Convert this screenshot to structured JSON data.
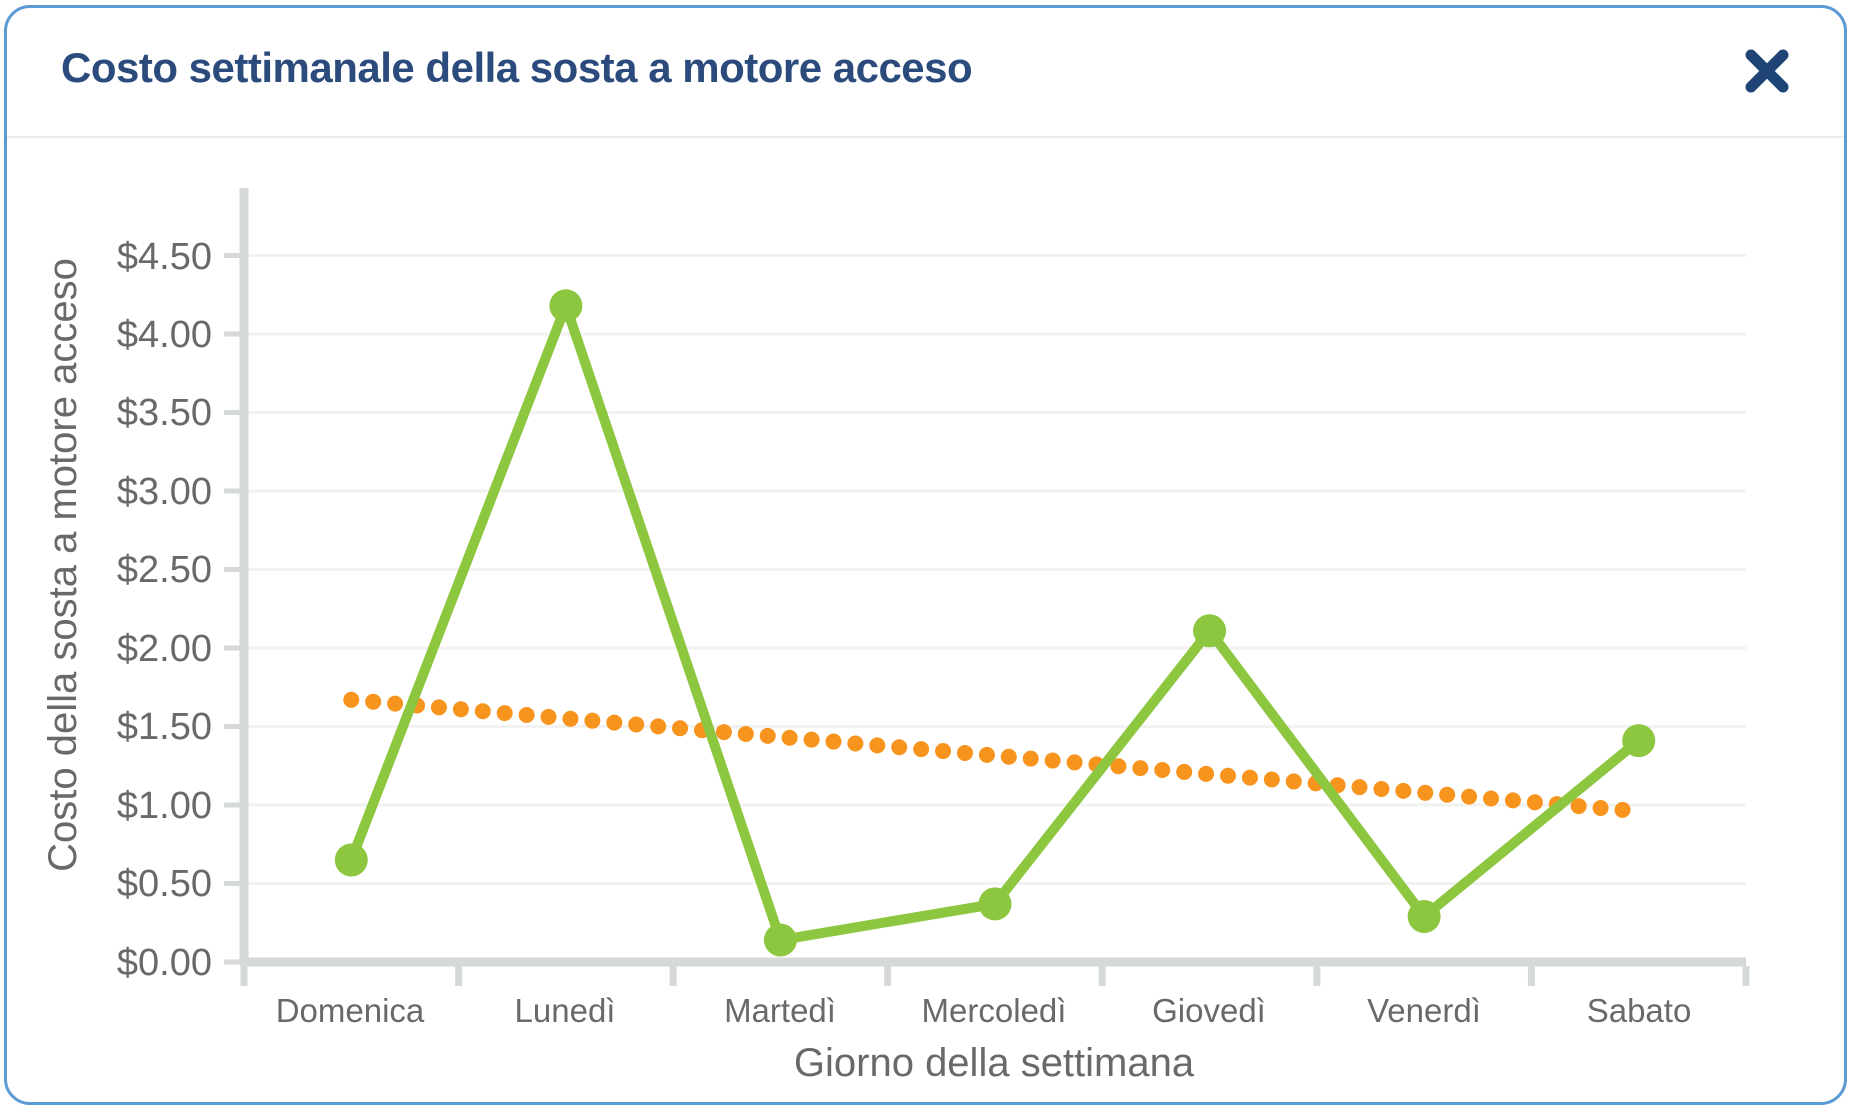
{
  "modal": {
    "title": "Costo settimanale della sosta a motore acceso"
  },
  "colors": {
    "card_border": "#5B9BD5",
    "title_text": "#2A4B7C",
    "close_icon": "#1F4577",
    "series_green": "#8DC63F",
    "trend_orange": "#F7941E",
    "axis_text": "#696969",
    "axis_line": "#D6D9DA",
    "gridline": "#F2F2F2"
  },
  "chart_data": {
    "type": "line",
    "title": "Costo settimanale della sosta a motore acceso",
    "xlabel": "Giorno della settimana",
    "ylabel": "Costo della sosta a motore acceso",
    "categories": [
      "Domenica",
      "Lunedì",
      "Martedì",
      "Mercoledì",
      "Giovedì",
      "Venerdì",
      "Sabato"
    ],
    "values": [
      0.65,
      4.18,
      0.14,
      0.37,
      2.11,
      0.29,
      1.41
    ],
    "trendline": {
      "style": "dotted",
      "start": 1.67,
      "end": 0.96,
      "values": [
        1.67,
        1.55,
        1.43,
        1.31,
        1.19,
        1.08,
        0.96
      ]
    },
    "y_ticks": [
      0,
      0.5,
      1,
      1.5,
      2,
      2.5,
      3,
      3.5,
      4,
      4.5
    ],
    "y_tick_labels": [
      "$0.00",
      "$0.50",
      "$1.00",
      "$1.50",
      "$2.00",
      "$2.50",
      "$3.00",
      "$3.50",
      "$4.00",
      "$4.50"
    ],
    "ylim": [
      0,
      4.75
    ],
    "grid": "horizontal",
    "legend": "none",
    "marker": "circle"
  }
}
